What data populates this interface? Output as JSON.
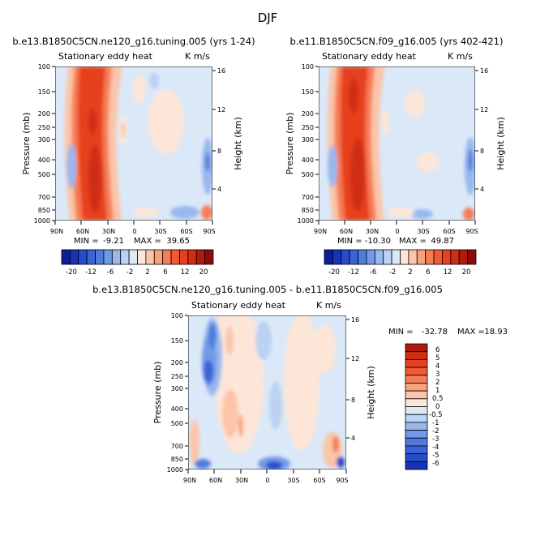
{
  "page": {
    "title": "DJF"
  },
  "colors": {
    "positive": [
      "#fde6d8",
      "#fcc4a8",
      "#f9a07c",
      "#f57c55",
      "#ef5a34",
      "#e6401f",
      "#cf2d14",
      "#b01a0d",
      "#8b0d07",
      "#6a0404"
    ],
    "negative": [
      "#dbe8f8",
      "#bcd2f3",
      "#98b8ee",
      "#7398e6",
      "#4f7bdd",
      "#3a63d4",
      "#274ccb",
      "#1633ba",
      "#0b1f98",
      "#03106b"
    ]
  },
  "chart_data": [
    {
      "type": "heatmap",
      "id": "top-left",
      "title": "b.e13.B1850C5CN.ne120_g16.tuning.005 (yrs 1-24)",
      "subtitle_left": "Stationary eddy heat",
      "subtitle_right": "K m/s",
      "ylabel": "Pressure (mb)",
      "ylabel_right": "Height (km)",
      "x_ticks": [
        "90N",
        "60N",
        "30N",
        "0",
        "30S",
        "60S",
        "90S"
      ],
      "y_ticks": [
        "100",
        "150",
        "200",
        "250",
        "300",
        "400",
        "500",
        "700",
        "850",
        "1000"
      ],
      "y_ticks_right": [
        "16",
        "12",
        "8",
        "4"
      ],
      "stats": {
        "min_label": "MIN =",
        "min": "-9.21",
        "max_label": "MAX =",
        "max": "39.65"
      },
      "colorbar_levels": [
        "-20",
        "-12",
        "-6",
        "-2",
        "2",
        "6",
        "12",
        "20"
      ]
    },
    {
      "type": "heatmap",
      "id": "top-right",
      "title": "b.e11.B1850C5CN.f09_g16.005 (yrs 402-421)",
      "subtitle_left": "Stationary eddy heat",
      "subtitle_right": "K m/s",
      "ylabel": "Pressure (mb)",
      "ylabel_right": "Height (km)",
      "x_ticks": [
        "90N",
        "60N",
        "30N",
        "0",
        "30S",
        "60S",
        "90S"
      ],
      "y_ticks": [
        "100",
        "150",
        "200",
        "250",
        "300",
        "400",
        "500",
        "700",
        "850",
        "1000"
      ],
      "y_ticks_right": [
        "16",
        "12",
        "8",
        "4"
      ],
      "stats": {
        "min_label": "MIN =",
        "min": "-10.30",
        "max_label": "MAX =",
        "max": "49.87"
      },
      "colorbar_levels": [
        "-20",
        "-12",
        "-6",
        "-2",
        "2",
        "6",
        "12",
        "20"
      ]
    },
    {
      "type": "heatmap",
      "id": "difference",
      "title": "b.e13.B1850C5CN.ne120_g16.tuning.005 - b.e11.B1850C5CN.f09_g16.005",
      "subtitle_left": "Stationary eddy heat",
      "subtitle_right": "K m/s",
      "ylabel": "Pressure (mb)",
      "ylabel_right": "Height (km)",
      "x_ticks": [
        "90N",
        "60N",
        "30N",
        "0",
        "30S",
        "60S",
        "90S"
      ],
      "y_ticks": [
        "100",
        "150",
        "200",
        "250",
        "300",
        "400",
        "500",
        "700",
        "850",
        "1000"
      ],
      "y_ticks_right": [
        "16",
        "12",
        "8",
        "4"
      ],
      "stats": {
        "min_label": "MIN =",
        "min": "-32.78",
        "max_label": "MAX =",
        "max": "18.93"
      },
      "colorbar_levels": [
        "6",
        "5",
        "4",
        "3",
        "2",
        "1",
        "0.5",
        "0",
        "-0.5",
        "-1",
        "-2",
        "-3",
        "-4",
        "-5",
        "-6"
      ]
    }
  ]
}
